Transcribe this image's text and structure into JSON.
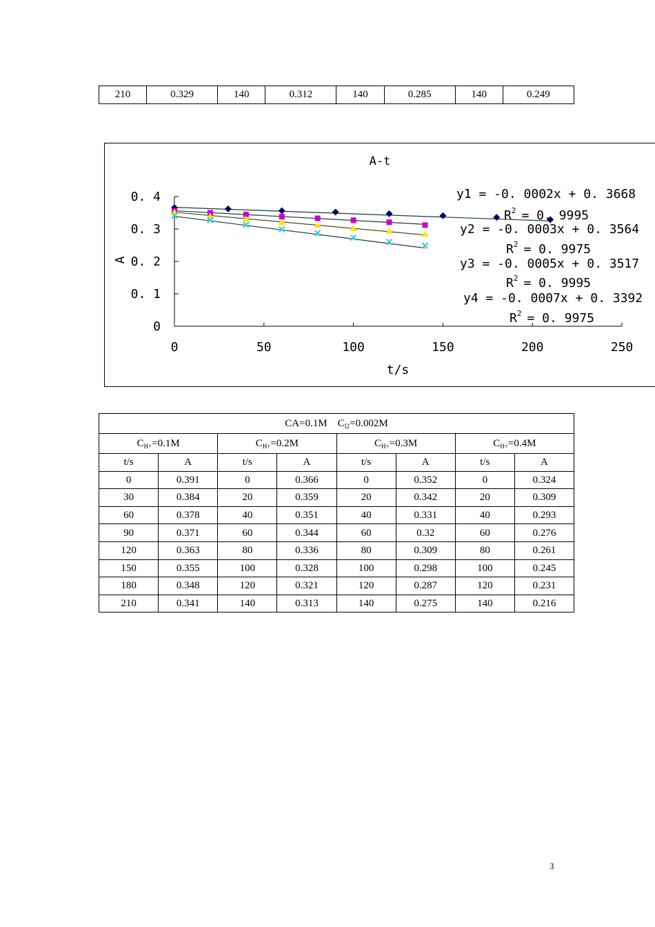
{
  "top_table": {
    "row": [
      "210",
      "0.329",
      "140",
      "0.312",
      "140",
      "0.285",
      "140",
      "0.249"
    ]
  },
  "chart_data": {
    "type": "scatter",
    "title": "A-t",
    "xlabel": "t/s",
    "ylabel": "A",
    "xlim": [
      0,
      250
    ],
    "ylim": [
      0,
      0.4
    ],
    "x_ticks": [
      "0",
      "50",
      "100",
      "150",
      "200",
      "250"
    ],
    "y_ticks": [
      "0",
      "0. 1",
      "0. 2",
      "0. 3",
      "0. 4"
    ],
    "grid": false,
    "legend": "none",
    "series": [
      {
        "color": "#000066",
        "marker": "diamond",
        "x": [
          0,
          30,
          60,
          90,
          120,
          150,
          180,
          210
        ],
        "y": [
          0.366,
          0.362,
          0.356,
          0.352,
          0.347,
          0.341,
          0.336,
          0.329
        ],
        "fit": {
          "slope": -0.0002,
          "intercept": 0.3668
        },
        "equation": "y1  =  -0. 0002x  +  0. 3668",
        "r2_label": "R",
        "r2_value": "=  0. 9995"
      },
      {
        "color": "#cc00cc",
        "marker": "square",
        "x": [
          0,
          20,
          40,
          60,
          80,
          100,
          120,
          140
        ],
        "y": [
          0.356,
          0.35,
          0.345,
          0.338,
          0.333,
          0.327,
          0.321,
          0.312
        ],
        "fit": {
          "slope": -0.0003,
          "intercept": 0.3564
        },
        "equation": "y2  =  -0. 0003x  +  0. 3564",
        "r2_label": "R",
        "r2_value": "=  0. 9975"
      },
      {
        "color": "#ffe600",
        "marker": "triangle",
        "x": [
          0,
          20,
          40,
          60,
          80,
          100,
          120,
          140
        ],
        "y": [
          0.352,
          0.34,
          0.331,
          0.321,
          0.312,
          0.302,
          0.294,
          0.285
        ],
        "fit": {
          "slope": -0.0005,
          "intercept": 0.3517
        },
        "equation": "y3  =  -0. 0005x  +  0. 3517",
        "r2_label": "R",
        "r2_value": "=  0. 9995"
      },
      {
        "color": "#33cccc",
        "marker": "x",
        "x": [
          0,
          20,
          40,
          60,
          80,
          100,
          120,
          140
        ],
        "y": [
          0.341,
          0.327,
          0.313,
          0.299,
          0.287,
          0.273,
          0.26,
          0.249
        ],
        "fit": {
          "slope": -0.0007,
          "intercept": 0.3392
        },
        "equation": "y4  =  -0. 0007x  +  0. 3392",
        "r2_label": "R",
        "r2_value": "=  0. 9975"
      }
    ]
  },
  "main_table": {
    "title_left": "CA=0.1M",
    "title_c": "C",
    "title_sub": "I2",
    "title_right": "=0.002M",
    "groups": [
      {
        "c": "C",
        "sub": "H+",
        "val": "=0.1M"
      },
      {
        "c": "C",
        "sub": "H+",
        "val": "=0.2M"
      },
      {
        "c": "C",
        "sub": "H+",
        "val": "=0.3M"
      },
      {
        "c": "C",
        "sub": "H+",
        "val": "=0.4M"
      }
    ],
    "col_headers": [
      "t/s",
      "A",
      "t/s",
      "A",
      "t/s",
      "A",
      "t/s",
      "A"
    ],
    "rows": [
      [
        "0",
        "0.391",
        "0",
        "0.366",
        "0",
        "0.352",
        "0",
        "0.324"
      ],
      [
        "30",
        "0.384",
        "20",
        "0.359",
        "20",
        "0.342",
        "20",
        "0.309"
      ],
      [
        "60",
        "0.378",
        "40",
        "0.351",
        "40",
        "0.331",
        "40",
        "0.293"
      ],
      [
        "90",
        "0.371",
        "60",
        "0.344",
        "60",
        "0.32",
        "60",
        "0.276"
      ],
      [
        "120",
        "0.363",
        "80",
        "0.336",
        "80",
        "0.309",
        "80",
        "0.261"
      ],
      [
        "150",
        "0.355",
        "100",
        "0.328",
        "100",
        "0.298",
        "100",
        "0.245"
      ],
      [
        "180",
        "0.348",
        "120",
        "0.321",
        "120",
        "0.287",
        "120",
        "0.231"
      ],
      [
        "210",
        "0.341",
        "140",
        "0.313",
        "140",
        "0.275",
        "140",
        "0.216"
      ]
    ]
  },
  "page_number": "3"
}
